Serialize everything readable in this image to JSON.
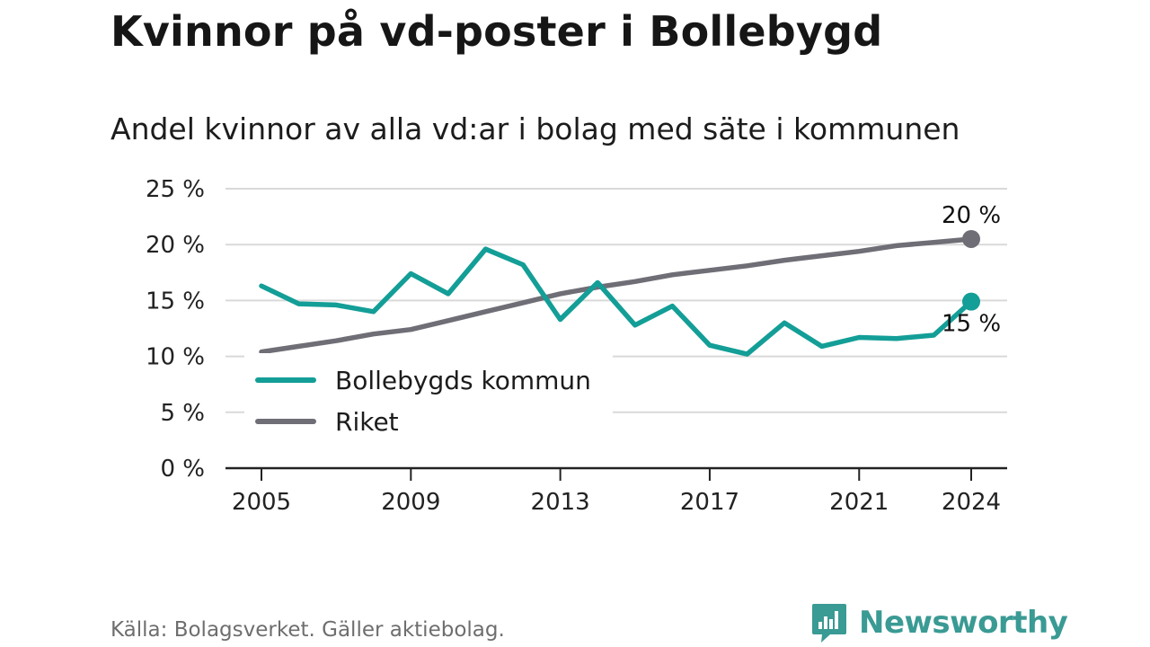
{
  "title": "Kvinnor på vd-poster i Bollebygd",
  "subtitle": "Andel kvinnor av alla vd:ar i bolag med säte i kommunen",
  "source": "Källa: Bolagsverket. Gäller aktiebolag.",
  "brand": {
    "name": "Newsworthy",
    "icon": "newsworthy-logo-icon"
  },
  "colors": {
    "municipality": "#139e97",
    "national": "#6f6e76",
    "grid": "#d9d9d9",
    "axis": "#222222"
  },
  "chart_data": {
    "type": "line",
    "ylim": [
      0,
      25
    ],
    "xlim": [
      2005,
      2024
    ],
    "y_ticks": [
      0,
      5,
      10,
      15,
      20,
      25
    ],
    "y_tick_labels": [
      "0 %",
      "5 %",
      "10 %",
      "15 %",
      "20 %",
      "25 %"
    ],
    "x_ticks": [
      2005,
      2009,
      2013,
      2017,
      2021,
      2024
    ],
    "x_tick_labels": [
      "2005",
      "2009",
      "2013",
      "2017",
      "2021",
      "2024"
    ],
    "grid": true,
    "legend_position": "lower-left",
    "x": [
      2005,
      2006,
      2007,
      2008,
      2009,
      2010,
      2011,
      2012,
      2013,
      2014,
      2015,
      2016,
      2017,
      2018,
      2019,
      2020,
      2021,
      2022,
      2023,
      2024
    ],
    "series": [
      {
        "name": "Bollebygds kommun",
        "color": "#139e97",
        "values": [
          16.3,
          14.7,
          14.6,
          14.0,
          17.4,
          15.6,
          19.6,
          18.2,
          13.3,
          16.6,
          12.8,
          14.5,
          11.0,
          10.2,
          13.0,
          10.9,
          11.7,
          11.6,
          11.9,
          14.9
        ],
        "end_label": "15 %"
      },
      {
        "name": "Riket",
        "color": "#6f6e76",
        "values": [
          10.4,
          10.9,
          11.4,
          12.0,
          12.4,
          13.2,
          14.0,
          14.8,
          15.6,
          16.2,
          16.7,
          17.3,
          17.7,
          18.1,
          18.6,
          19.0,
          19.4,
          19.9,
          20.2,
          20.5
        ],
        "end_label": "20 %"
      }
    ]
  }
}
